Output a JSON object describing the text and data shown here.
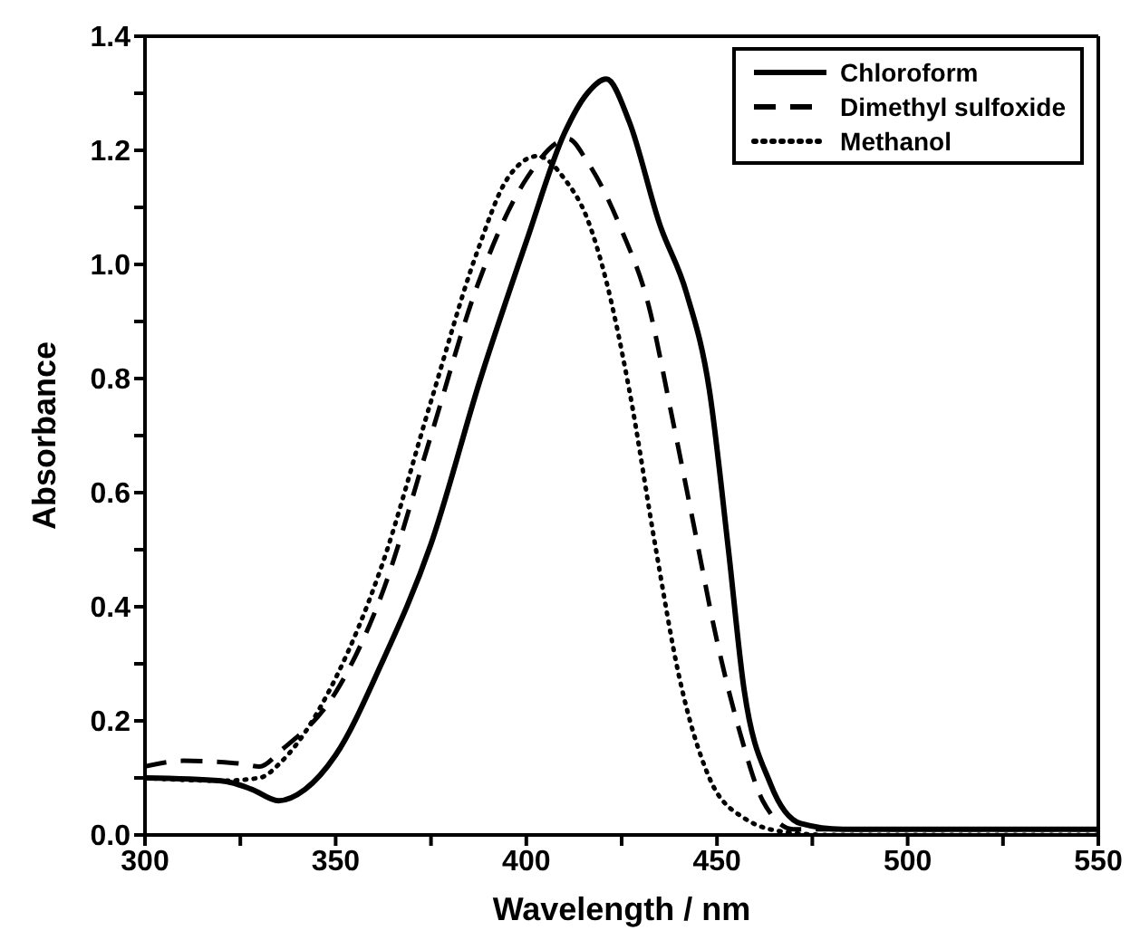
{
  "chart_data": {
    "type": "line",
    "xlabel": "Wavelength / nm",
    "ylabel": "Absorbance",
    "xlim": [
      300,
      550
    ],
    "xticks": [
      300,
      {
        "value": 325,
        "label": null
      },
      350,
      {
        "value": 375,
        "label": null
      },
      400,
      {
        "value": 425,
        "label": null
      },
      450,
      {
        "value": 475,
        "label": null
      },
      500,
      {
        "value": 525,
        "label": null
      },
      550
    ],
    "ylim": [
      0,
      1.4
    ],
    "yticks": [
      {
        "value": 0,
        "label": "0.0"
      },
      {
        "value": 0.1,
        "label": null
      },
      {
        "value": 0.2,
        "label": "0.2"
      },
      {
        "value": 0.3,
        "label": null
      },
      {
        "value": 0.4,
        "label": "0.4"
      },
      {
        "value": 0.5,
        "label": null
      },
      {
        "value": 0.6,
        "label": "0.6"
      },
      {
        "value": 0.7,
        "label": null
      },
      {
        "value": 0.8,
        "label": "0.8"
      },
      {
        "value": 0.9,
        "label": null
      },
      {
        "value": 1.0,
        "label": "1.0"
      },
      {
        "value": 1.1,
        "label": null
      },
      {
        "value": 1.2,
        "label": "1.2"
      },
      {
        "value": 1.3,
        "label": null
      },
      {
        "value": 1.4,
        "label": "1.4"
      }
    ],
    "legend": "top right",
    "marker": "none",
    "series": [
      {
        "name": "Chloroform",
        "color": "#000000",
        "line_style": "solid",
        "x": [
          300,
          320,
          328,
          335,
          342,
          350,
          362,
          375,
          388,
          400,
          410,
          416,
          421,
          427,
          435,
          442,
          448,
          453,
          457,
          464,
          472,
          483,
          500,
          525,
          550
        ],
        "values": [
          0.1,
          0.095,
          0.08,
          0.06,
          0.08,
          0.14,
          0.3,
          0.51,
          0.8,
          1.04,
          1.23,
          1.3,
          1.325,
          1.25,
          1.07,
          0.95,
          0.78,
          0.5,
          0.26,
          0.09,
          0.02,
          0.01,
          0.01,
          0.01,
          0.01
        ]
      },
      {
        "name": "Dimethyl sulfoxide",
        "color": "#000000",
        "line_style": "dashed",
        "x": [
          300,
          310,
          325,
          330,
          336,
          350,
          362,
          375,
          387,
          400,
          411,
          416,
          425,
          432,
          438,
          444,
          450,
          456,
          462,
          470,
          480,
          500,
          525,
          550
        ],
        "values": [
          0.12,
          0.13,
          0.125,
          0.12,
          0.15,
          0.25,
          0.42,
          0.7,
          0.96,
          1.15,
          1.22,
          1.18,
          1.06,
          0.93,
          0.74,
          0.54,
          0.34,
          0.18,
          0.06,
          0.01,
          0.01,
          0.01,
          0.01,
          0.01
        ]
      },
      {
        "name": "Methanol",
        "color": "#000000",
        "line_style": "dotted",
        "x": [
          300,
          320,
          330,
          336,
          350,
          362,
          375,
          387,
          395,
          403,
          410,
          416,
          421,
          427,
          434,
          440,
          448,
          457,
          468,
          480,
          500,
          525,
          550
        ],
        "values": [
          0.1,
          0.095,
          0.1,
          0.13,
          0.275,
          0.47,
          0.76,
          1.02,
          1.15,
          1.19,
          1.15,
          1.08,
          0.97,
          0.78,
          0.5,
          0.28,
          0.1,
          0.03,
          0.005,
          0,
          0,
          0,
          0
        ]
      }
    ]
  }
}
